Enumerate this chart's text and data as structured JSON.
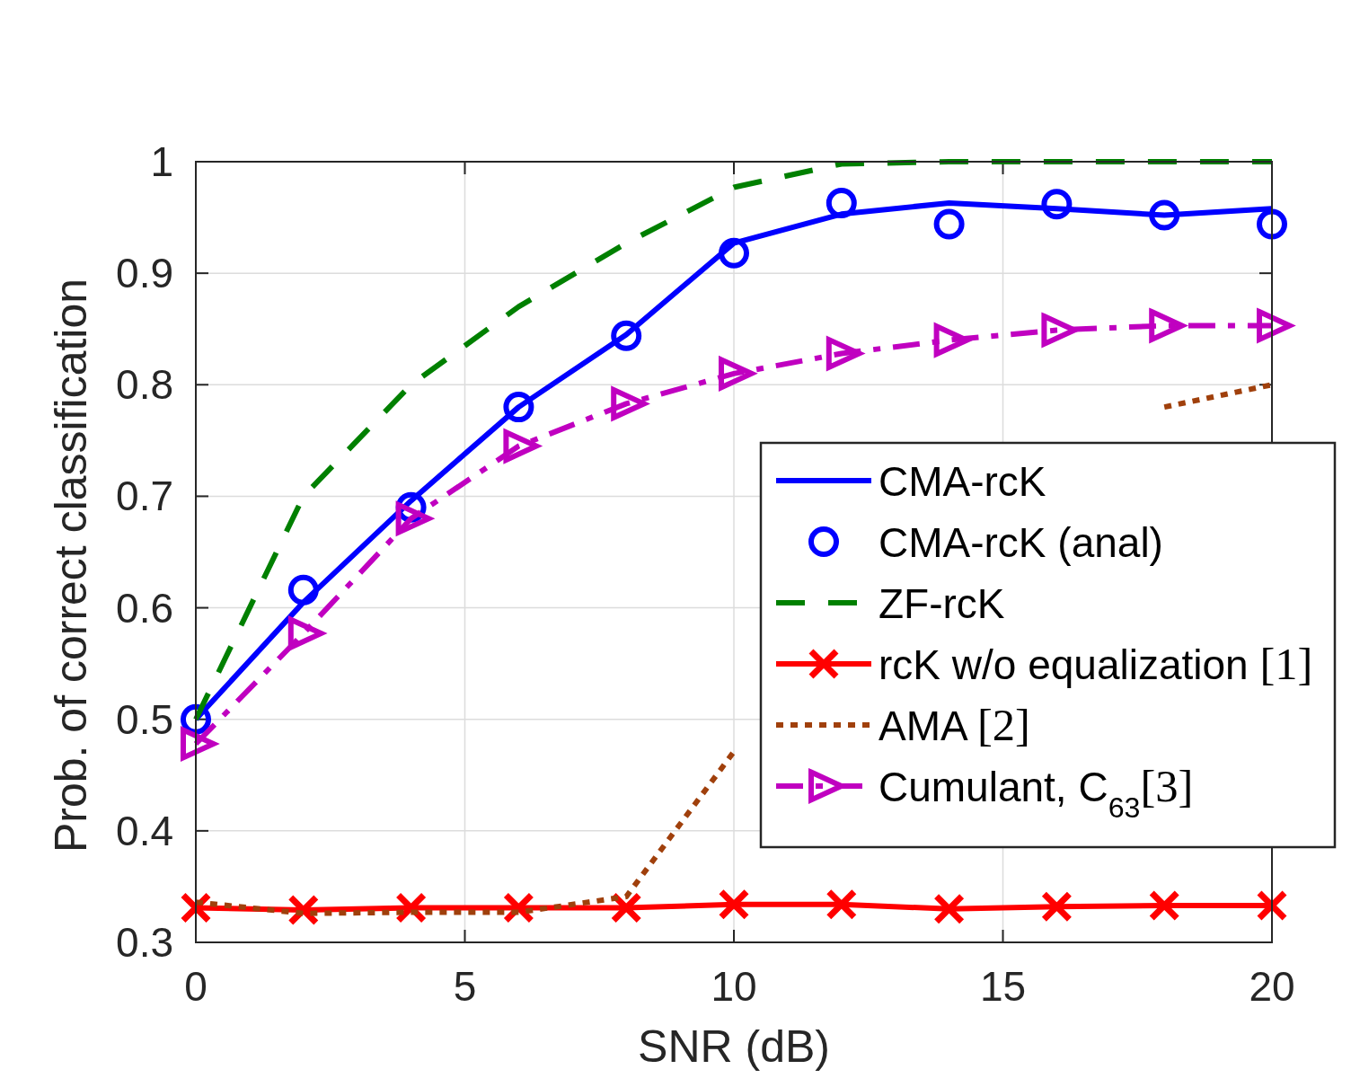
{
  "chart_data": {
    "type": "line",
    "xlabel": "SNR (dB)",
    "ylabel": "Prob. of correct classification",
    "x": [
      0,
      2,
      4,
      6,
      8,
      10,
      12,
      14,
      16,
      18,
      20
    ],
    "xlim": [
      0,
      20
    ],
    "xticks": [
      0,
      5,
      10,
      15,
      20
    ],
    "ylim": [
      0.3,
      1
    ],
    "yticks": [
      0.3,
      0.4,
      0.5,
      0.6,
      0.7,
      0.8,
      0.9,
      1
    ],
    "grid": true,
    "legend": "right",
    "series": [
      {
        "name": "CMA-rcK",
        "color": "#0000ff",
        "line_style": "solid",
        "marker": "none",
        "values": [
          0.5,
          0.605,
          0.696,
          0.78,
          0.845,
          0.927,
          0.953,
          0.963,
          0.958,
          0.952,
          0.958
        ]
      },
      {
        "name": "CMA-rcK (anal)",
        "type": "scatter",
        "color": "#0000ff",
        "marker": "circle",
        "values": [
          0.5,
          0.616,
          0.69,
          0.78,
          0.844,
          0.918,
          0.963,
          0.944,
          0.962,
          0.952,
          0.944
        ]
      },
      {
        "name": "ZF-rcK",
        "color": "#008000",
        "line_style": "dashed",
        "marker": "none",
        "values": [
          0.5,
          0.7,
          0.8,
          0.87,
          0.927,
          0.977,
          0.998,
          1,
          1,
          1,
          1
        ]
      },
      {
        "name": "rcK w/o equalization [1]",
        "color": "#ff0000",
        "line_style": "solid",
        "marker": "cross",
        "values": [
          0.331,
          0.329,
          0.331,
          0.331,
          0.331,
          0.334,
          0.334,
          0.33,
          0.332,
          0.333,
          0.333
        ]
      },
      {
        "name": "AMA [2]",
        "color": "#a0400c",
        "line_style": "dotted",
        "marker": "none",
        "values": [
          0.336,
          0.326,
          0.327,
          0.327,
          0.341,
          0.471,
          null,
          null,
          null,
          0.78,
          0.8
        ]
      },
      {
        "name": "Cumulant, C$_{63}$[3]",
        "color": "#c000c0",
        "line_style": "dashdot",
        "marker": "triangle",
        "values": [
          0.478,
          0.577,
          0.68,
          0.745,
          0.783,
          0.81,
          0.828,
          0.84,
          0.849,
          0.853,
          0.853
        ]
      }
    ]
  }
}
